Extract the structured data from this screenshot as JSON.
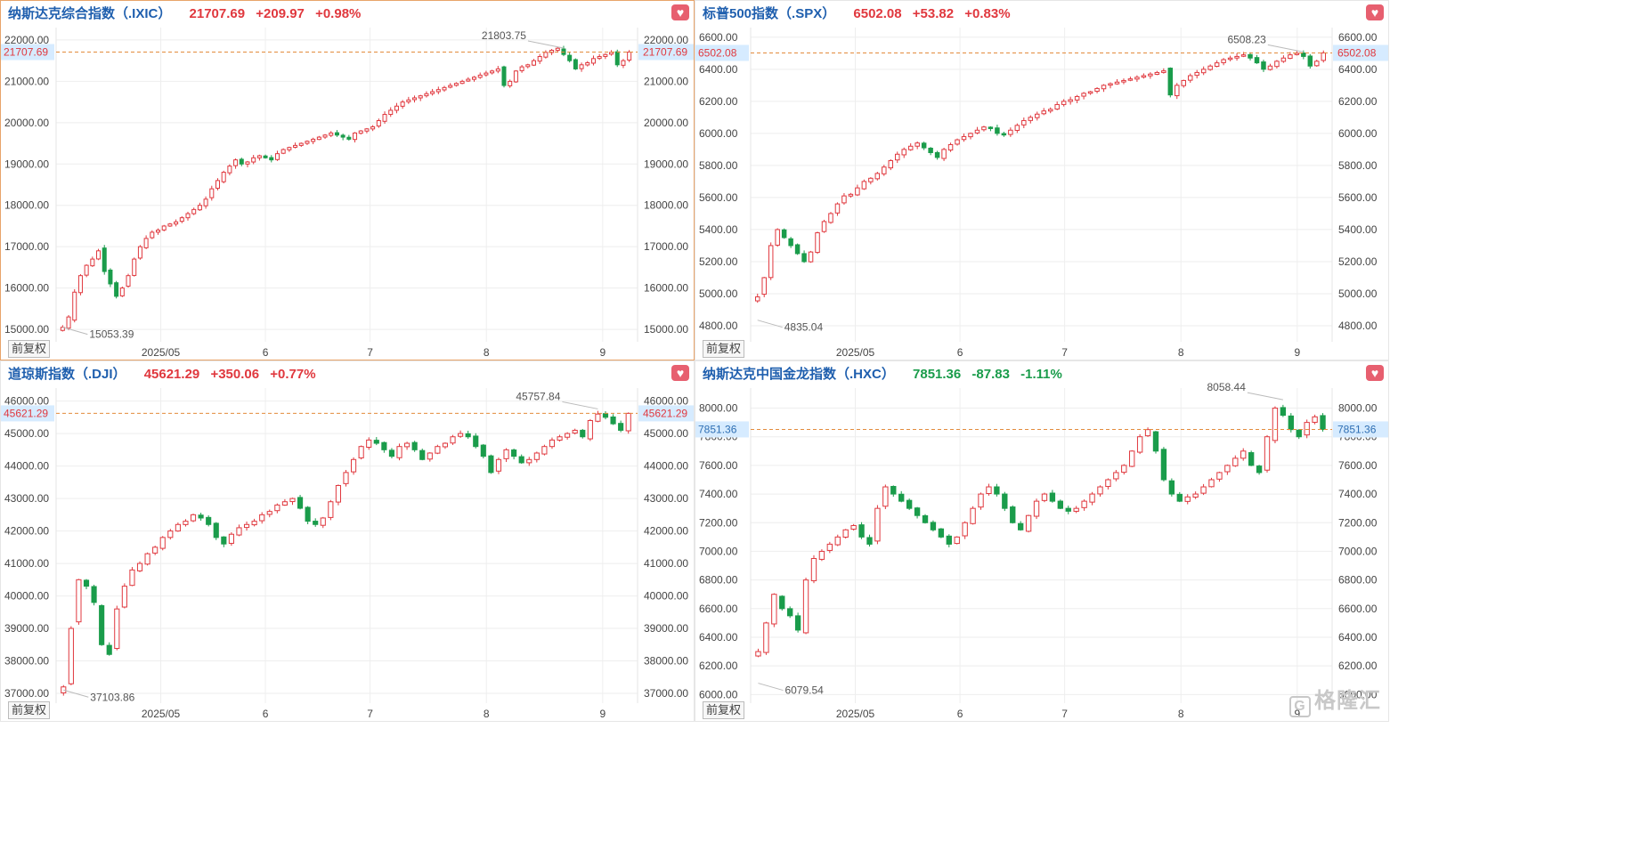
{
  "common": {
    "favorite_icon": "heart-icon",
    "adjust_label": "前复权",
    "colors": {
      "up": "#e0383e",
      "down": "#1a9c4b",
      "grid": "#eeeeee",
      "ref_line": "#e38b3c",
      "label_bg": "#d6ebff"
    }
  },
  "watermark": {
    "text": "格隆汇",
    "icon": "logo-icon"
  },
  "panels": [
    {
      "title": "纳斯达克综合指数（.IXIC）",
      "price": "21707.69",
      "change": "+209.97",
      "percent": "+0.98%",
      "direction": "up",
      "active": true,
      "chart_data": {
        "type": "candlestick",
        "y_ticks": [
          "22000.00",
          "21000.00",
          "20000.00",
          "19000.00",
          "18000.00",
          "17000.00",
          "16000.00",
          "15000.00"
        ],
        "x_ticks": [
          "2025/05",
          "6",
          "7",
          "8",
          "9"
        ],
        "ylim": [
          14700,
          22300
        ],
        "last": 21707.69,
        "last_label": "21707.69",
        "high_label": "21803.75",
        "low_label": "15053.39",
        "high": 21803.75,
        "low": 15053.39,
        "closes": [
          15050,
          15300,
          15900,
          16300,
          16550,
          16700,
          16900,
          16400,
          16100,
          15800,
          16000,
          16300,
          16700,
          17000,
          17200,
          17350,
          17400,
          17500,
          17550,
          17600,
          17700,
          17800,
          17900,
          18000,
          18150,
          18400,
          18600,
          18800,
          18950,
          19100,
          19000,
          19050,
          19150,
          19200,
          19150,
          19100,
          19250,
          19350,
          19400,
          19450,
          19500,
          19550,
          19600,
          19650,
          19700,
          19750,
          19700,
          19650,
          19600,
          19750,
          19800,
          19850,
          19900,
          20050,
          20200,
          20300,
          20400,
          20500,
          20550,
          20600,
          20650,
          20700,
          20750,
          20800,
          20850,
          20900,
          20950,
          21000,
          21050,
          21100,
          21150,
          21200,
          21250,
          21300,
          20900,
          21000,
          21250,
          21350,
          21400,
          21500,
          21600,
          21700,
          21750,
          21800,
          21650,
          21500,
          21300,
          21400,
          21450,
          21550,
          21600,
          21650,
          21700,
          21400,
          21500,
          21707.69
        ]
      }
    },
    {
      "title": "标普500指数（.SPX）",
      "price": "6502.08",
      "change": "+53.82",
      "percent": "+0.83%",
      "direction": "up",
      "active": false,
      "chart_data": {
        "type": "candlestick",
        "y_ticks": [
          "6600.00",
          "6400.00",
          "6200.00",
          "6000.00",
          "5800.00",
          "5600.00",
          "5400.00",
          "5200.00",
          "5000.00",
          "4800.00"
        ],
        "x_ticks": [
          "2025/05",
          "6",
          "7",
          "8",
          "9"
        ],
        "ylim": [
          4700,
          6660
        ],
        "last": 6502.08,
        "last_label": "6502.08",
        "high_label": "6508.23",
        "low_label": "4835.04",
        "high": 6508.23,
        "low": 4835.04,
        "closes": [
          4980,
          5100,
          5300,
          5400,
          5350,
          5300,
          5250,
          5200,
          5260,
          5380,
          5450,
          5500,
          5560,
          5610,
          5620,
          5660,
          5700,
          5720,
          5750,
          5790,
          5830,
          5870,
          5900,
          5920,
          5940,
          5910,
          5880,
          5850,
          5900,
          5930,
          5960,
          5980,
          6000,
          6020,
          6040,
          6030,
          6000,
          5990,
          6020,
          6050,
          6080,
          6100,
          6120,
          6140,
          6150,
          6180,
          6200,
          6210,
          6230,
          6250,
          6260,
          6280,
          6300,
          6310,
          6320,
          6330,
          6340,
          6350,
          6360,
          6370,
          6380,
          6390,
          6240,
          6300,
          6330,
          6360,
          6380,
          6400,
          6420,
          6440,
          6460,
          6470,
          6480,
          6490,
          6470,
          6440,
          6400,
          6420,
          6450,
          6470,
          6490,
          6500,
          6480,
          6420,
          6450,
          6502.08
        ]
      }
    },
    {
      "title": "道琼斯指数（.DJI）",
      "price": "45621.29",
      "change": "+350.06",
      "percent": "+0.77%",
      "direction": "up",
      "active": false,
      "chart_data": {
        "type": "candlestick",
        "y_ticks": [
          "46000.00",
          "45000.00",
          "44000.00",
          "43000.00",
          "42000.00",
          "41000.00",
          "40000.00",
          "39000.00",
          "38000.00",
          "37000.00"
        ],
        "x_ticks": [
          "2025/05",
          "6",
          "7",
          "8",
          "9"
        ],
        "ylim": [
          36700,
          46400
        ],
        "last": 45621.29,
        "last_label": "45621.29",
        "high_label": "45757.84",
        "low_label": "37103.86",
        "high": 45757.84,
        "low": 37103.86,
        "closes": [
          37200,
          39000,
          40500,
          40300,
          39800,
          38500,
          38200,
          39600,
          40300,
          40800,
          41000,
          41300,
          41500,
          41800,
          42000,
          42200,
          42300,
          42500,
          42400,
          42200,
          41800,
          41600,
          41900,
          42100,
          42200,
          42300,
          42500,
          42600,
          42800,
          42900,
          43000,
          42700,
          42300,
          42200,
          42400,
          42900,
          43400,
          43800,
          44200,
          44600,
          44800,
          44700,
          44500,
          44300,
          44600,
          44700,
          44500,
          44200,
          44400,
          44600,
          44700,
          44900,
          45000,
          44900,
          44600,
          44300,
          43800,
          44200,
          44500,
          44300,
          44100,
          44200,
          44400,
          44600,
          44800,
          44900,
          45000,
          45100,
          44900,
          45400,
          45600,
          45500,
          45300,
          45100,
          45621.29
        ]
      }
    },
    {
      "title": "纳斯达克中国金龙指数（.HXC）",
      "price": "7851.36",
      "change": "-87.83",
      "percent": "-1.11%",
      "direction": "down",
      "active": false,
      "chart_data": {
        "type": "candlestick",
        "y_ticks": [
          "8000.00",
          "7800.00",
          "7600.00",
          "7400.00",
          "7200.00",
          "7000.00",
          "6800.00",
          "6600.00",
          "6400.00",
          "6200.00",
          "6000.00"
        ],
        "x_ticks": [
          "2025/05",
          "6",
          "7",
          "8",
          "9"
        ],
        "ylim": [
          5940,
          8140
        ],
        "last": 7851.36,
        "last_label": "7851.36",
        "high_label": "8058.44",
        "low_label": "6079.54",
        "high": 8058.44,
        "low": 6079.54,
        "closes": [
          6300,
          6500,
          6700,
          6600,
          6550,
          6450,
          6800,
          6950,
          7000,
          7050,
          7100,
          7150,
          7180,
          7100,
          7050,
          7300,
          7450,
          7400,
          7350,
          7300,
          7250,
          7200,
          7150,
          7100,
          7050,
          7100,
          7200,
          7300,
          7400,
          7450,
          7400,
          7300,
          7200,
          7150,
          7250,
          7350,
          7400,
          7350,
          7300,
          7280,
          7300,
          7350,
          7400,
          7450,
          7500,
          7550,
          7600,
          7700,
          7800,
          7850,
          7700,
          7500,
          7400,
          7350,
          7380,
          7400,
          7450,
          7500,
          7550,
          7600,
          7650,
          7700,
          7600,
          7550,
          7800,
          8000,
          7950,
          7850,
          7800,
          7900,
          7939,
          7851.36
        ]
      }
    }
  ]
}
